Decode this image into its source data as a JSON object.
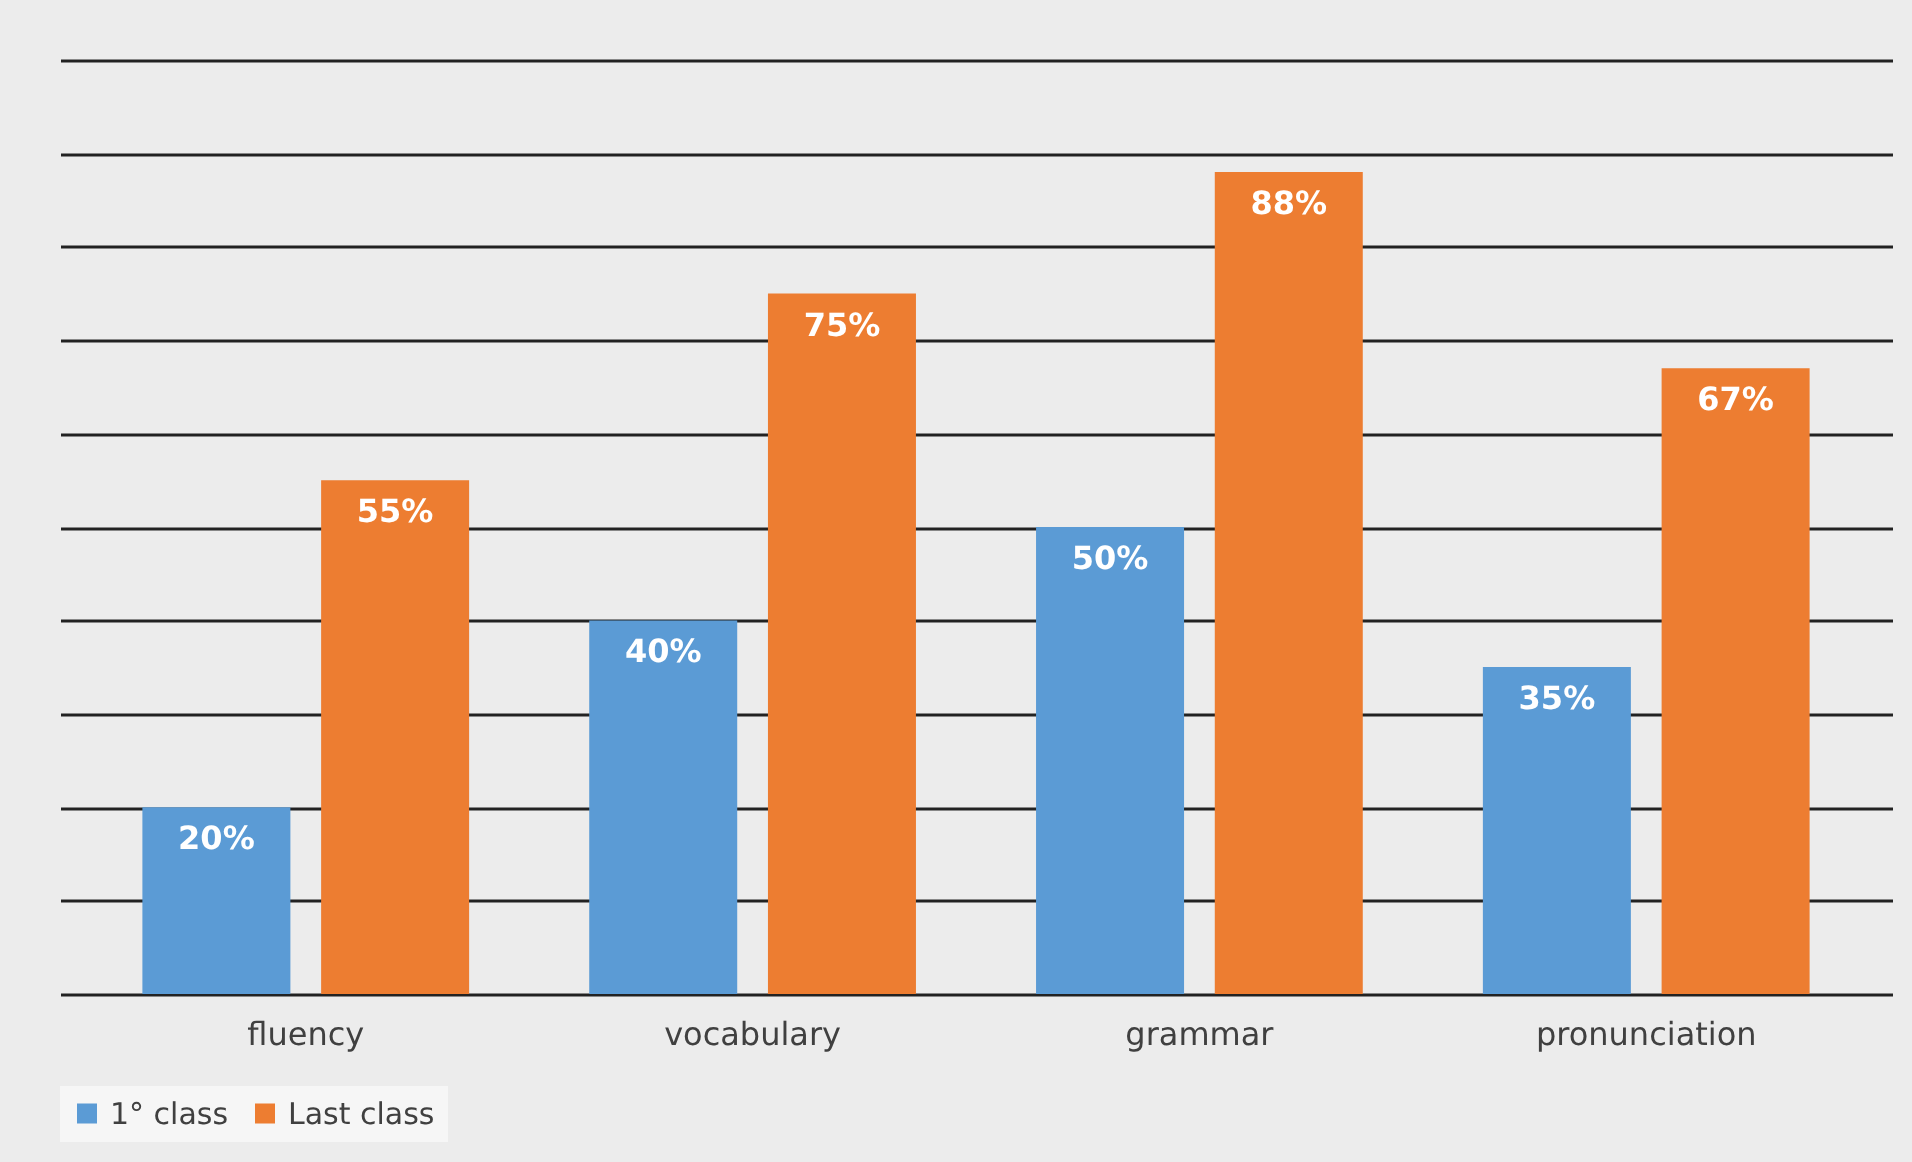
{
  "chart_data": {
    "type": "bar",
    "categories": [
      "fluency",
      "vocabulary",
      "grammar",
      "pronunciation"
    ],
    "series": [
      {
        "name": "1° class",
        "color": "#5b9bd5",
        "values": [
          20,
          40,
          50,
          35
        ],
        "value_labels": [
          "20%",
          "40%",
          "50%",
          "35%"
        ]
      },
      {
        "name": "Last class",
        "color": "#ed7d31",
        "values": [
          55,
          75,
          88,
          67
        ],
        "value_labels": [
          "55%",
          "75%",
          "88%",
          "67%"
        ]
      }
    ],
    "ylim": [
      0,
      100
    ],
    "yticks": [
      {
        "value": 0,
        "label": null
      },
      {
        "value": 10,
        "label": null
      },
      {
        "value": 20,
        "label": null
      },
      {
        "value": 30,
        "label": null
      },
      {
        "value": 40,
        "label": null
      },
      {
        "value": 50,
        "label": null
      },
      {
        "value": 60,
        "label": null
      },
      {
        "value": 70,
        "label": null
      },
      {
        "value": 80,
        "label": null
      },
      {
        "value": 90,
        "label": null
      },
      {
        "value": 100,
        "label": null
      }
    ],
    "tick_labels": "x",
    "grid": "y",
    "legend": "bottom"
  }
}
